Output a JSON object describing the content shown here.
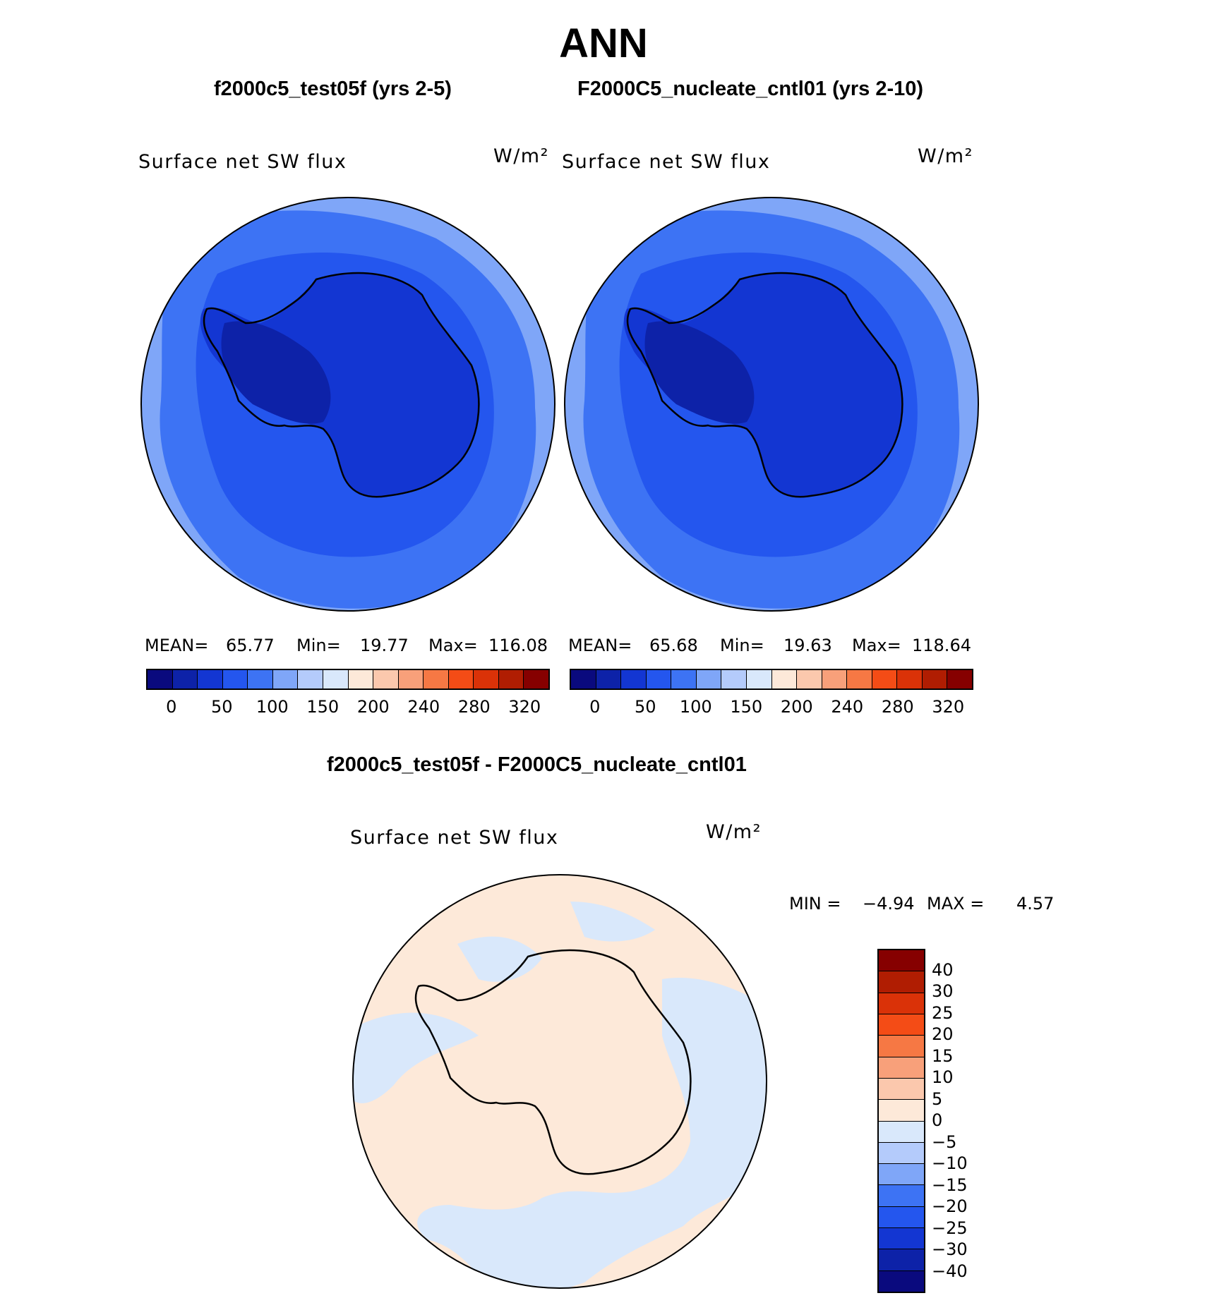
{
  "title": "ANN",
  "panel_a": {
    "header": "f2000c5_test05f (yrs 2-5)",
    "var_label": "Surface net SW flux",
    "units": "W/m²",
    "mean_label": "MEAN=",
    "mean_value": "65.77",
    "min_label": "Min=",
    "min_value": "19.77",
    "max_label": "Max=",
    "max_value": "116.08"
  },
  "panel_b": {
    "header": "F2000C5_nucleate_cntl01 (yrs 2-10)",
    "var_label": "Surface net SW flux",
    "units": "W/m²",
    "mean_label": "MEAN=",
    "mean_value": "65.68",
    "min_label": "Min=",
    "min_value": "19.63",
    "max_label": "Max=",
    "max_value": "118.64"
  },
  "panel_diff": {
    "header": "f2000c5_test05f - F2000C5_nucleate_cntl01",
    "var_label": "Surface net SW flux",
    "units": "W/m²",
    "min_label": "MIN =",
    "min_value": "−4.94",
    "max_label": "MAX =",
    "max_value": "4.57"
  },
  "colorbar_abs": {
    "ticks": [
      "0",
      "50",
      "100",
      "150",
      "200",
      "240",
      "280",
      "320"
    ],
    "colors": [
      "#0a0a7e",
      "#0d22a8",
      "#1336d2",
      "#2456ee",
      "#3d73f4",
      "#7fa6f8",
      "#b4cbfb",
      "#d9e8fb",
      "#fde9d9",
      "#fbc8ad",
      "#f8a07a",
      "#f67844",
      "#f44c16",
      "#da3208",
      "#b01d02",
      "#860000"
    ]
  },
  "colorbar_diff": {
    "ticks": [
      "40",
      "30",
      "25",
      "20",
      "15",
      "10",
      "5",
      "0",
      "−5",
      "−10",
      "−15",
      "−20",
      "−25",
      "−30",
      "−40"
    ],
    "colors": [
      "#860000",
      "#b01d02",
      "#da3208",
      "#f44c16",
      "#f67844",
      "#f8a07a",
      "#fbc8ad",
      "#fde9d9",
      "#d9e8fb",
      "#b4cbfb",
      "#7fa6f8",
      "#3d73f4",
      "#2456ee",
      "#1336d2",
      "#0d22a8",
      "#0a0a7e"
    ]
  }
}
